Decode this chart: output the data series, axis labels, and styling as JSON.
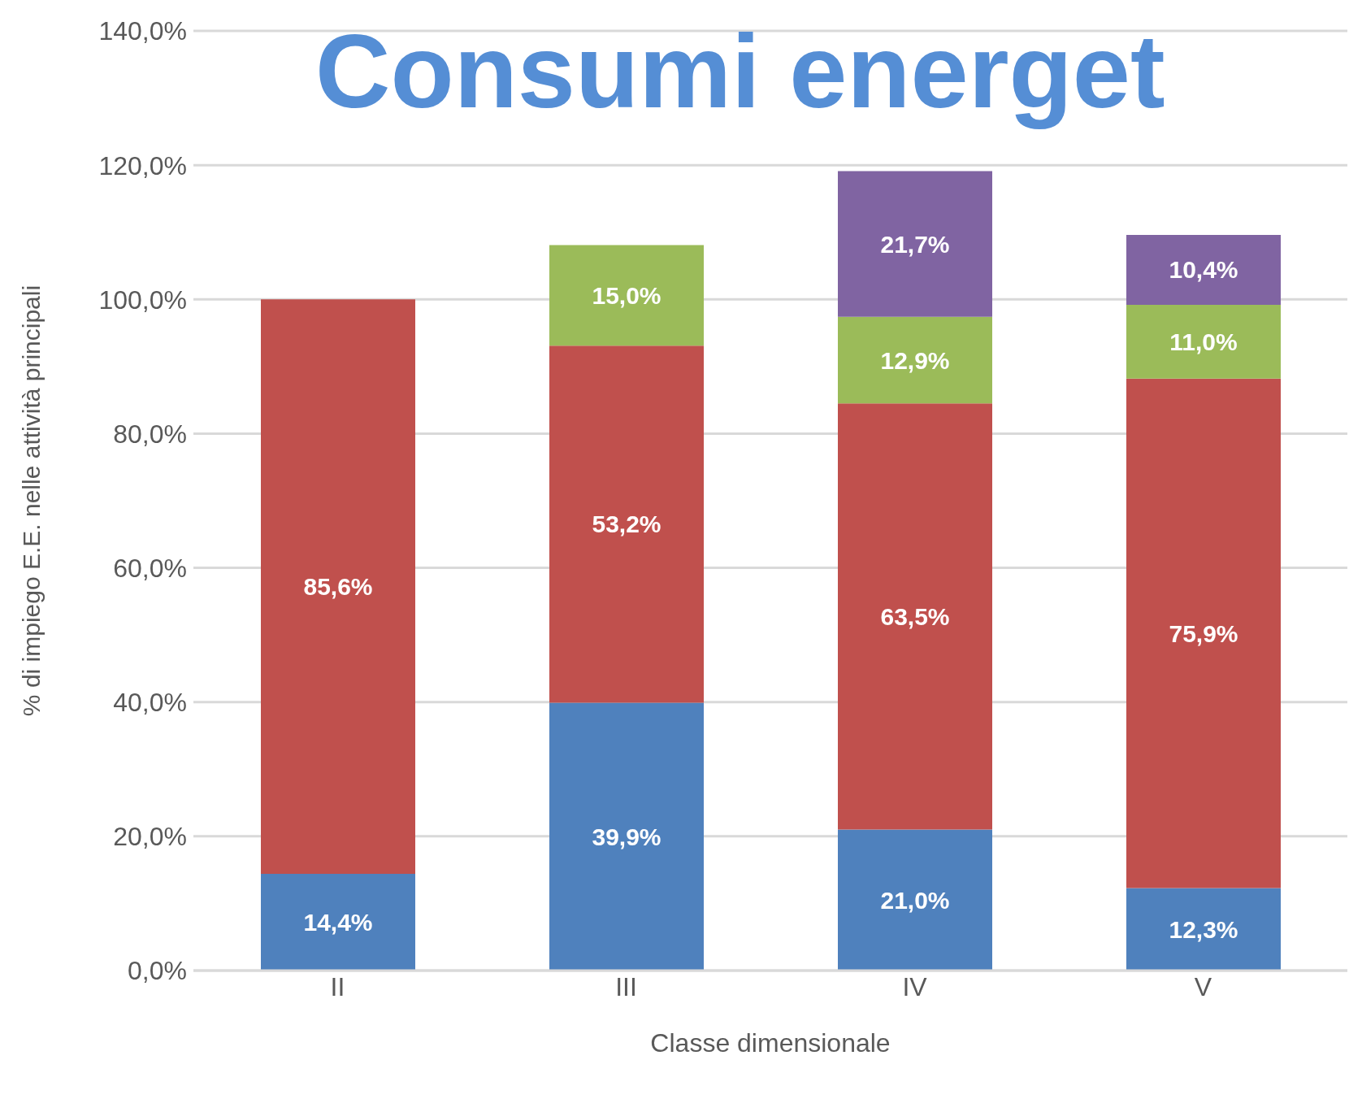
{
  "chart_data": {
    "type": "bar",
    "title": "Consumi energet",
    "xlabel": "Classe dimensionale",
    "ylabel": "% di impiego E.E. nelle attività principali",
    "categories": [
      "II",
      "III",
      "IV",
      "V"
    ],
    "stacked": true,
    "series": [
      {
        "color": "#4f81bd",
        "values": [
          14.4,
          39.9,
          21.0,
          12.3
        ],
        "value_labels": [
          "14,4%",
          "39,9%",
          "21,0%",
          "12,3%"
        ]
      },
      {
        "color": "#c0504d",
        "values": [
          85.6,
          53.2,
          63.5,
          75.9
        ],
        "value_labels": [
          "85,6%",
          "53,2%",
          "63,5%",
          "75,9%"
        ]
      },
      {
        "color": "#9bbb59",
        "values": [
          null,
          15.0,
          12.9,
          11.0
        ],
        "value_labels": [
          null,
          "15,0%",
          "12,9%",
          "11,0%"
        ]
      },
      {
        "color": "#8064a2",
        "values": [
          null,
          null,
          21.7,
          10.4
        ],
        "value_labels": [
          null,
          null,
          "21,7%",
          "10,4%"
        ]
      }
    ],
    "ylim": [
      0,
      140
    ],
    "yticks": [
      {
        "value": 0,
        "label": "0,0%"
      },
      {
        "value": 20,
        "label": "20,0%"
      },
      {
        "value": 40,
        "label": "40,0%"
      },
      {
        "value": 60,
        "label": "60,0%"
      },
      {
        "value": 80,
        "label": "80,0%"
      },
      {
        "value": 100,
        "label": "100,0%"
      },
      {
        "value": 120,
        "label": "120,0%"
      },
      {
        "value": 140,
        "label": "140,0%"
      }
    ],
    "grid": "y",
    "legend": false
  }
}
